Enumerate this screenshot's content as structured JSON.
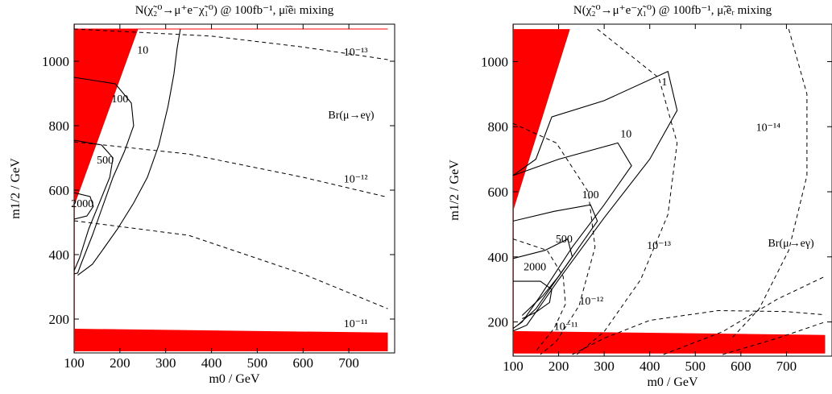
{
  "chart_data": [
    {
      "type": "line",
      "title": "N(χ̃₂⁰→μ⁺e⁻χ̃₁⁰) @ 100fb⁻¹, μ̃ₗẽₗ mixing",
      "xlabel": "m0 / GeV",
      "ylabel": "m1/2 / GeV",
      "xlim": [
        100,
        800
      ],
      "ylim": [
        95,
        1115
      ],
      "xticks": [
        "100",
        "200",
        "300",
        "400",
        "500",
        "600",
        "700"
      ],
      "yticks": [
        "200",
        "400",
        "600",
        "800",
        "1000"
      ],
      "annotation": "Br(μ→eγ)",
      "excluded_regions": [
        {
          "points": [
            [
              100,
              550
            ],
            [
              100,
              1100
            ],
            [
              240,
              1100
            ]
          ]
        },
        {
          "points": [
            [
              100,
              100
            ],
            [
              785,
              100
            ],
            [
              785,
              158
            ],
            [
              100,
              170
            ]
          ]
        }
      ],
      "solid_contours": [
        {
          "label": "10",
          "label_at": [
            250,
            1032
          ],
          "points": [
            [
              108,
              336
            ],
            [
              140,
              370
            ],
            [
              165,
              420
            ],
            [
              195,
              480
            ],
            [
              230,
              560
            ],
            [
              260,
              640
            ],
            [
              285,
              740
            ],
            [
              305,
              860
            ],
            [
              318,
              960
            ],
            [
              325,
              1040
            ],
            [
              332,
              1100
            ]
          ]
        },
        {
          "label": "100",
          "label_at": [
            200,
            880
          ],
          "points": [
            [
              100,
              950
            ],
            [
              190,
              930
            ],
            [
              225,
              870
            ],
            [
              230,
              800
            ],
            [
              210,
              720
            ],
            [
              185,
              640
            ],
            [
              160,
              540
            ],
            [
              140,
              460
            ],
            [
              115,
              370
            ],
            [
              108,
              343
            ],
            [
              100,
              340
            ]
          ]
        },
        {
          "label": "500",
          "label_at": [
            168,
            690
          ],
          "points": [
            [
              100,
              755
            ],
            [
              160,
              740
            ],
            [
              185,
              700
            ],
            [
              178,
              640
            ],
            [
              155,
              560
            ],
            [
              132,
              480
            ],
            [
              112,
              390
            ],
            [
              100,
              350
            ]
          ]
        },
        {
          "label": "2000",
          "label_at": [
            118,
            556
          ],
          "points": [
            [
              100,
              592
            ],
            [
              135,
              580
            ],
            [
              142,
              550
            ],
            [
              128,
              520
            ],
            [
              100,
              510
            ]
          ]
        }
      ],
      "dashed_contours": [
        {
          "label": "10⁻¹³",
          "label_at": [
            715,
            1025
          ],
          "points": [
            [
              100,
              1100
            ],
            [
              400,
              1078
            ],
            [
              600,
              1044
            ],
            [
              785,
              1005
            ]
          ]
        },
        {
          "label": "10⁻¹²",
          "label_at": [
            715,
            632
          ],
          "points": [
            [
              100,
              750
            ],
            [
              350,
              712
            ],
            [
              600,
              640
            ],
            [
              785,
              578
            ]
          ]
        },
        {
          "label": "10⁻¹¹",
          "label_at": [
            715,
            183
          ],
          "points": [
            [
              100,
              505
            ],
            [
              350,
              460
            ],
            [
              600,
              340
            ],
            [
              785,
              232
            ]
          ]
        }
      ]
    },
    {
      "type": "line",
      "title": "N(χ̃₂⁰→μ⁺e⁻χ̃₁⁰) @ 100fb⁻¹, μ̃ᵣẽᵣ mixing",
      "xlabel": "m0 / GeV",
      "ylabel": "m1/2 / GeV",
      "xlim": [
        100,
        800
      ],
      "ylim": [
        95,
        1115
      ],
      "xticks": [
        "100",
        "200",
        "300",
        "400",
        "500",
        "600",
        "700"
      ],
      "yticks": [
        "200",
        "400",
        "600",
        "800",
        "1000"
      ],
      "annotation": "Br(μ→eγ)",
      "excluded_regions": [
        {
          "points": [
            [
              100,
              540
            ],
            [
              100,
              1100
            ],
            [
              225,
              1100
            ]
          ]
        },
        {
          "points": [
            [
              100,
              103
            ],
            [
              785,
              103
            ],
            [
              785,
              160
            ],
            [
              100,
              172
            ]
          ]
        }
      ],
      "solid_contours": [
        {
          "label": "1",
          "label_at": [
            432,
            935
          ],
          "points": [
            [
              100,
              650
            ],
            [
              150,
              700
            ],
            [
              185,
              830
            ],
            [
              300,
              880
            ],
            [
              440,
              970
            ],
            [
              460,
              850
            ],
            [
              400,
              700
            ],
            [
              300,
              520
            ],
            [
              200,
              330
            ],
            [
              130,
              190
            ],
            [
              100,
              172
            ]
          ]
        },
        {
          "label": "10",
          "label_at": [
            348,
            775
          ],
          "points": [
            [
              100,
              650
            ],
            [
              200,
              700
            ],
            [
              330,
              750
            ],
            [
              360,
              680
            ],
            [
              300,
              560
            ],
            [
              230,
              430
            ],
            [
              160,
              280
            ],
            [
              120,
              200
            ],
            [
              100,
              180
            ]
          ]
        },
        {
          "label": "100",
          "label_at": [
            270,
            588
          ],
          "points": [
            [
              100,
              510
            ],
            [
              190,
              540
            ],
            [
              270,
              560
            ],
            [
              285,
              510
            ],
            [
              240,
              420
            ],
            [
              190,
              320
            ],
            [
              150,
              240
            ],
            [
              110,
              190
            ]
          ]
        },
        {
          "label": "500",
          "label_at": [
            212,
            452
          ],
          "points": [
            [
              100,
              395
            ],
            [
              170,
              420
            ],
            [
              220,
              455
            ],
            [
              230,
              400
            ],
            [
              200,
              340
            ],
            [
              165,
              280
            ],
            [
              120,
              220
            ]
          ]
        },
        {
          "label": "2000",
          "label_at": [
            148,
            367
          ],
          "points": [
            [
              100,
              325
            ],
            [
              160,
              325
            ],
            [
              185,
              300
            ],
            [
              180,
              260
            ],
            [
              150,
              230
            ],
            [
              120,
              210
            ]
          ]
        }
      ],
      "dashed_contours": [
        {
          "label": "10⁻¹⁴",
          "label_at": [
            660,
            795
          ],
          "points": [
            [
              705,
              1100
            ],
            [
              745,
              900
            ],
            [
              745,
              650
            ],
            [
              705,
              420
            ],
            [
              640,
              240
            ],
            [
              580,
              150
            ]
          ]
        },
        {
          "label": "10⁻¹³",
          "label_at": [
            420,
            432
          ],
          "points": [
            [
              285,
              1100
            ],
            [
              420,
              950
            ],
            [
              460,
              750
            ],
            [
              440,
              530
            ],
            [
              380,
              330
            ],
            [
              300,
              170
            ],
            [
              240,
              100
            ]
          ]
        },
        {
          "label": "10⁻¹²",
          "label_at": [
            272,
            262
          ],
          "points": [
            [
              100,
              810
            ],
            [
              195,
              750
            ],
            [
              265,
              600
            ],
            [
              280,
              430
            ],
            [
              245,
              250
            ],
            [
              195,
              140
            ],
            [
              160,
              100
            ]
          ]
        },
        {
          "label": "10⁻¹¹",
          "label_at": [
            216,
            183
          ],
          "points": [
            [
              100,
              455
            ],
            [
              175,
              420
            ],
            [
              210,
              340
            ],
            [
              215,
              255
            ],
            [
              190,
              180
            ],
            [
              150,
              110
            ]
          ]
        },
        {
          "label": "",
          "label_at": null,
          "points": [
            [
              230,
              100
            ],
            [
              300,
              150
            ],
            [
              400,
              205
            ],
            [
              550,
              235
            ],
            [
              700,
              232
            ],
            [
              785,
              222
            ]
          ]
        },
        {
          "label": "",
          "label_at": null,
          "points": [
            [
              430,
              100
            ],
            [
              560,
              170
            ],
            [
              680,
              270
            ],
            [
              785,
              340
            ]
          ]
        },
        {
          "label": "",
          "label_at": null,
          "points": [
            [
              560,
              100
            ],
            [
              680,
              150
            ],
            [
              785,
              200
            ]
          ]
        }
      ]
    }
  ]
}
